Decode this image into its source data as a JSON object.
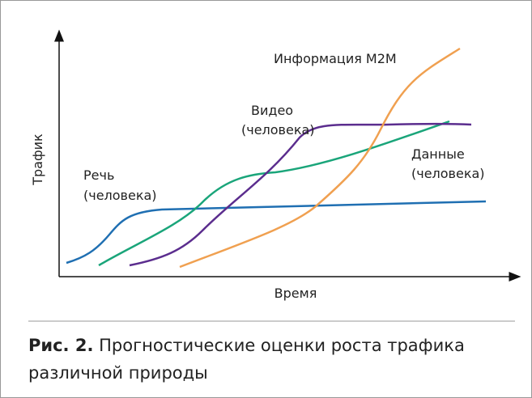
{
  "axes": {
    "y_label": "Трафик",
    "x_label": "Время"
  },
  "curves": [
    {
      "name": "Информация M2M"
    },
    {
      "name": "Видео",
      "sub": "(человека)"
    },
    {
      "name": "Данные",
      "sub": "(человека)"
    },
    {
      "name": "Речь",
      "sub": "(человека)"
    }
  ],
  "caption": {
    "number": "Рис. 2.",
    "text": "Прогностические оценки роста трафика различной природы"
  }
}
